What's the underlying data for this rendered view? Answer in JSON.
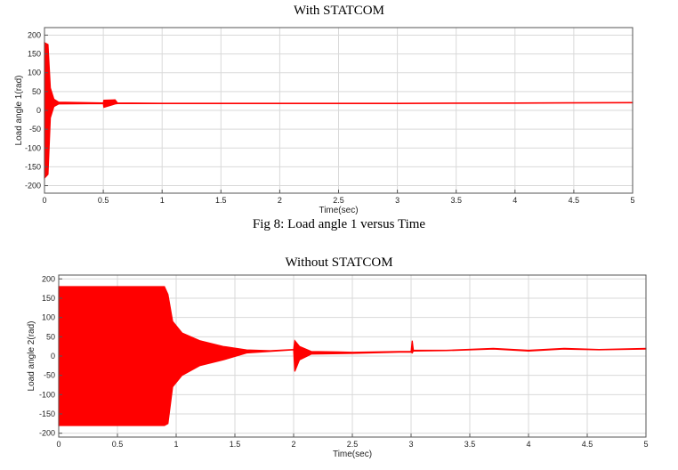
{
  "figure1": {
    "title": "With STATCOM",
    "caption": "Fig 8: Load angle 1 versus Time"
  },
  "figure2": {
    "title": "Without STATCOM"
  },
  "colors": {
    "trace": "#ff0000",
    "grid": "#d9d9d9",
    "axis": "#555555"
  },
  "chart_data": [
    {
      "type": "line",
      "title": "With STATCOM",
      "xlabel": "Time(sec)",
      "ylabel": "Load angle 1(rad)",
      "xlim": [
        0,
        5
      ],
      "ylim": [
        -220,
        220
      ],
      "xticks": [
        0,
        0.5,
        1,
        1.5,
        2,
        2.5,
        3,
        3.5,
        4,
        4.5,
        5
      ],
      "yticks": [
        -200,
        -150,
        -100,
        -50,
        0,
        50,
        100,
        150,
        200
      ],
      "grid": true,
      "series": [
        {
          "envelope_upper": [
            [
              0,
              180
            ],
            [
              0.03,
              175
            ],
            [
              0.05,
              60
            ],
            [
              0.08,
              30
            ],
            [
              0.12,
              22
            ],
            [
              0.5,
              20
            ],
            [
              0.505,
              27
            ],
            [
              0.6,
              28
            ],
            [
              0.62,
              20
            ],
            [
              1,
              19
            ],
            [
              2,
              19
            ],
            [
              3,
              19
            ],
            [
              4,
              20
            ],
            [
              5,
              21
            ]
          ],
          "envelope_lower": [
            [
              0,
              -180
            ],
            [
              0.03,
              -170
            ],
            [
              0.05,
              -20
            ],
            [
              0.08,
              10
            ],
            [
              0.12,
              17
            ],
            [
              0.5,
              18
            ],
            [
              0.505,
              8
            ],
            [
              0.6,
              17
            ],
            [
              0.62,
              18
            ],
            [
              1,
              18
            ],
            [
              2,
              18
            ],
            [
              3,
              18
            ],
            [
              4,
              19
            ],
            [
              5,
              20
            ]
          ]
        }
      ]
    },
    {
      "type": "line",
      "title": "Without STATCOM",
      "xlabel": "Time(sec)",
      "ylabel": "Load angle 2(rad)",
      "xlim": [
        0,
        5
      ],
      "ylim": [
        -210,
        210
      ],
      "xticks": [
        0,
        0.5,
        1,
        1.5,
        2,
        2.5,
        3,
        3.5,
        4,
        4.5,
        5
      ],
      "yticks": [
        -200,
        -150,
        -100,
        -50,
        0,
        50,
        100,
        150,
        200
      ],
      "grid": true,
      "series": [
        {
          "envelope_upper": [
            [
              0,
              180
            ],
            [
              0.9,
              180
            ],
            [
              0.93,
              160
            ],
            [
              0.97,
              90
            ],
            [
              1.05,
              60
            ],
            [
              1.2,
              40
            ],
            [
              1.4,
              25
            ],
            [
              1.6,
              16
            ],
            [
              1.8,
              14
            ],
            [
              2.0,
              17
            ],
            [
              2.01,
              40
            ],
            [
              2.05,
              25
            ],
            [
              2.15,
              12
            ],
            [
              2.5,
              10
            ],
            [
              2.9,
              12
            ],
            [
              3.0,
              12
            ],
            [
              3.01,
              40
            ],
            [
              3.02,
              15
            ],
            [
              3.3,
              15
            ],
            [
              3.7,
              20
            ],
            [
              4.0,
              15
            ],
            [
              4.3,
              20
            ],
            [
              4.6,
              17
            ],
            [
              5,
              20
            ]
          ],
          "envelope_lower": [
            [
              0,
              -180
            ],
            [
              0.9,
              -180
            ],
            [
              0.93,
              -175
            ],
            [
              0.97,
              -80
            ],
            [
              1.05,
              -50
            ],
            [
              1.2,
              -25
            ],
            [
              1.4,
              -10
            ],
            [
              1.6,
              8
            ],
            [
              1.8,
              12
            ],
            [
              2.0,
              16
            ],
            [
              2.01,
              -40
            ],
            [
              2.05,
              -10
            ],
            [
              2.15,
              5
            ],
            [
              2.5,
              7
            ],
            [
              2.9,
              10
            ],
            [
              3.0,
              10
            ],
            [
              3.01,
              8
            ],
            [
              3.02,
              13
            ],
            [
              3.3,
              14
            ],
            [
              3.7,
              18
            ],
            [
              4.0,
              13
            ],
            [
              4.3,
              18
            ],
            [
              4.6,
              16
            ],
            [
              5,
              18
            ]
          ]
        }
      ]
    }
  ]
}
